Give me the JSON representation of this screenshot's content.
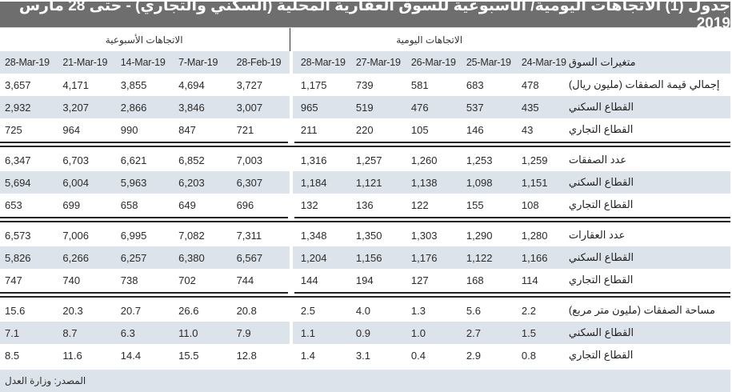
{
  "title": "جدول (1) الاتجاهات اليومية/ الأسبوعية  للسوق العقارية المحلية (السكني والتجاري) - حتى 28 مارس 2019",
  "headers": {
    "daily_group": "الاتجاهات اليومية",
    "weekly_group": "الاتجاهات الأسبوعية",
    "label_col": "متغيرات السوق",
    "daily_dates": [
      "24-Mar-19",
      "25-Mar-19",
      "26-Mar-19",
      "27-Mar-19",
      "28-Mar-19"
    ],
    "weekly_dates": [
      "28-Feb-19",
      "7-Mar-19",
      "14-Mar-19",
      "21-Mar-19",
      "28-Mar-19"
    ]
  },
  "groups": [
    {
      "rows": [
        {
          "label": "إجمالي قيمة الصفقات (مليون ريال)",
          "daily": [
            "478",
            "683",
            "581",
            "739",
            "1,175"
          ],
          "weekly": [
            "3,727",
            "4,694",
            "3,855",
            "4,171",
            "3,657"
          ]
        },
        {
          "label": "القطاع السكني",
          "daily": [
            "435",
            "537",
            "476",
            "519",
            "965"
          ],
          "weekly": [
            "3,007",
            "3,846",
            "2,866",
            "3,207",
            "2,932"
          ]
        },
        {
          "label": "القطاع التجاري",
          "daily": [
            "43",
            "146",
            "105",
            "220",
            "211"
          ],
          "weekly": [
            "721",
            "847",
            "990",
            "964",
            "725"
          ]
        }
      ]
    },
    {
      "rows": [
        {
          "label": "عدد الصفقات",
          "daily": [
            "1,259",
            "1,253",
            "1,260",
            "1,257",
            "1,316"
          ],
          "weekly": [
            "7,003",
            "6,852",
            "6,621",
            "6,703",
            "6,347"
          ]
        },
        {
          "label": "القطاع السكني",
          "daily": [
            "1,151",
            "1,098",
            "1,138",
            "1,121",
            "1,184"
          ],
          "weekly": [
            "6,307",
            "6,203",
            "5,963",
            "6,004",
            "5,694"
          ]
        },
        {
          "label": "القطاع التجاري",
          "daily": [
            "108",
            "155",
            "122",
            "136",
            "132"
          ],
          "weekly": [
            "696",
            "649",
            "658",
            "699",
            "653"
          ]
        }
      ]
    },
    {
      "rows": [
        {
          "label": "عدد العقارات",
          "daily": [
            "1,280",
            "1,290",
            "1,303",
            "1,350",
            "1,348"
          ],
          "weekly": [
            "7,311",
            "7,082",
            "6,995",
            "7,006",
            "6,573"
          ]
        },
        {
          "label": "القطاع السكني",
          "daily": [
            "1,166",
            "1,122",
            "1,176",
            "1,156",
            "1,204"
          ],
          "weekly": [
            "6,567",
            "6,380",
            "6,257",
            "6,266",
            "5,826"
          ]
        },
        {
          "label": "القطاع التجاري",
          "daily": [
            "114",
            "168",
            "127",
            "194",
            "144"
          ],
          "weekly": [
            "744",
            "702",
            "738",
            "740",
            "747"
          ]
        }
      ]
    },
    {
      "rows": [
        {
          "label": "مساحة الصفقات (مليون متر مربع)",
          "daily": [
            "2.2",
            "5.6",
            "1.3",
            "4.0",
            "2.5"
          ],
          "weekly": [
            "20.8",
            "26.6",
            "20.7",
            "20.3",
            "15.6"
          ]
        },
        {
          "label": "القطاع السكني",
          "daily": [
            "1.5",
            "2.7",
            "1.0",
            "0.9",
            "1.1"
          ],
          "weekly": [
            "7.9",
            "11.0",
            "6.3",
            "8.7",
            "7.1"
          ]
        },
        {
          "label": "القطاع التجاري",
          "daily": [
            "0.8",
            "2.9",
            "0.4",
            "3.1",
            "1.4"
          ],
          "weekly": [
            "12.8",
            "15.5",
            "14.4",
            "11.6",
            "8.5"
          ]
        }
      ]
    }
  ],
  "footer": {
    "source": "المصدر: وزارة العدل"
  },
  "colors": {
    "title_bg": "#6e6e6e",
    "shaded_row": "#dde3ea",
    "text": "#2b2b2b"
  }
}
